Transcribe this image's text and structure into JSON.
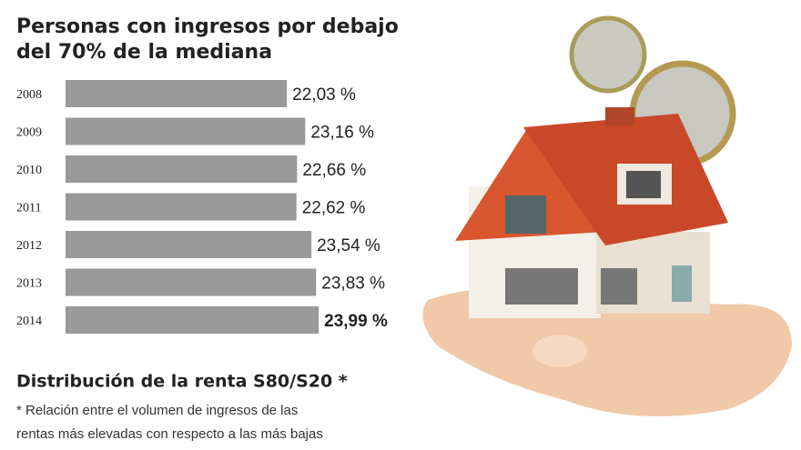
{
  "chart_data": {
    "type": "bar",
    "orientation": "horizontal",
    "title": [
      "Personas con ingresos por debajo",
      "del 70% de la mediana"
    ],
    "categories": [
      "2008",
      "2009",
      "2010",
      "2011",
      "2012",
      "2013",
      "2014"
    ],
    "values": [
      22.03,
      23.16,
      22.66,
      22.62,
      23.54,
      23.83,
      23.99
    ],
    "value_labels": [
      "22,03 %",
      "23,16 %",
      "22,66 %",
      "22,62 %",
      "23,54 %",
      "23,83 %",
      "23,99 %"
    ],
    "color": "#999999",
    "xlim": [
      8.4,
      26
    ]
  },
  "notes": {
    "heading": "Distribución de la renta S80/S20 *",
    "footnote": [
      "* Relación entre el volumen de ingresos de las",
      "rentas más elevadas con respecto a las más bajas"
    ]
  }
}
